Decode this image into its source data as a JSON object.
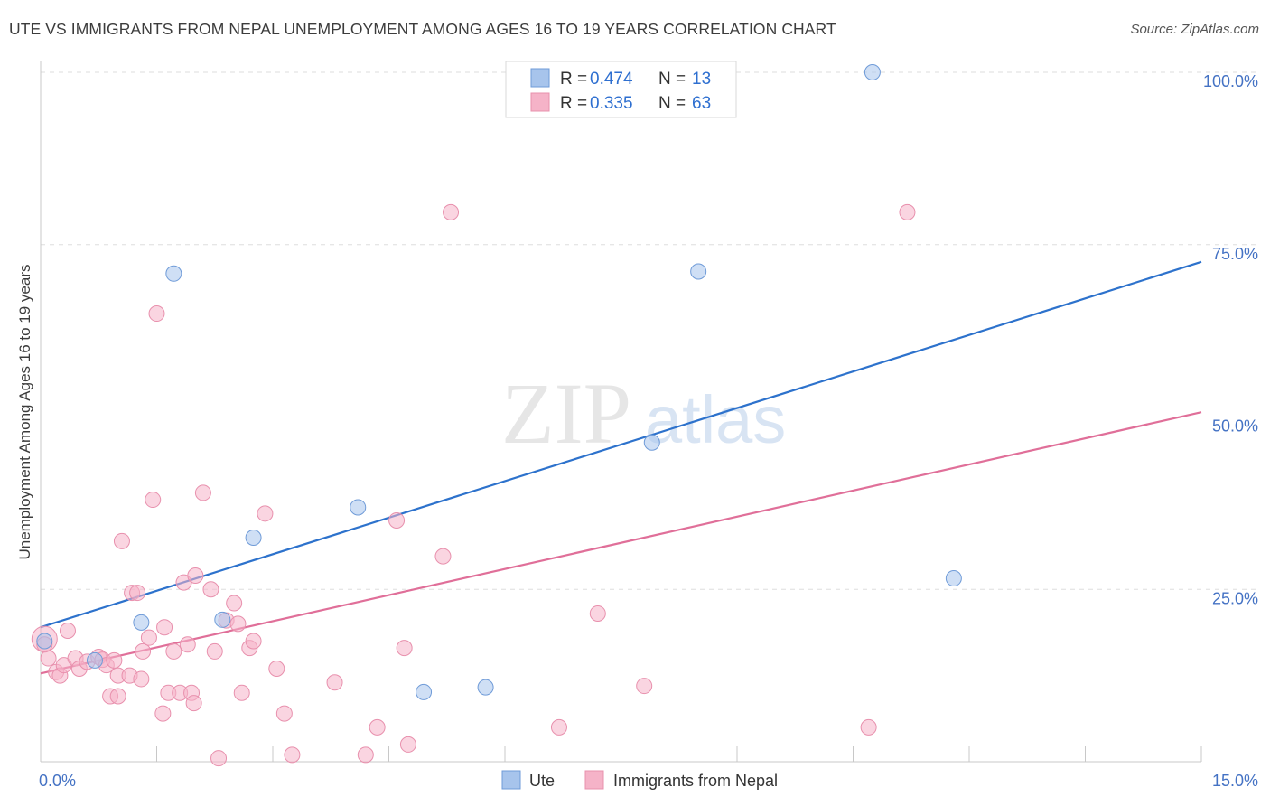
{
  "header": {
    "title": "UTE VS IMMIGRANTS FROM NEPAL UNEMPLOYMENT AMONG AGES 16 TO 19 YEARS CORRELATION CHART",
    "source": "Source: ZipAtlas.com"
  },
  "watermark": {
    "zip": "ZIP",
    "atlas": "atlas"
  },
  "chart_data": {
    "type": "scatter",
    "ylabel": "Unemployment Among Ages 16 to 19 years",
    "xlim": [
      0,
      15
    ],
    "ylim": [
      0,
      102
    ],
    "x_tick_labels": [
      "0.0%",
      "15.0%"
    ],
    "y_ticks": [
      {
        "value": 25,
        "label": "25.0%"
      },
      {
        "value": 50,
        "label": "50.0%"
      },
      {
        "value": 75,
        "label": "75.0%"
      },
      {
        "value": 100,
        "label": "100.0%"
      }
    ],
    "grid": true,
    "legend_top": [
      {
        "r_label": "R = ",
        "r_value": "0.474",
        "n_label": "N = ",
        "n_value": "13",
        "color": "#a7c4ec"
      },
      {
        "r_label": "R = ",
        "r_value": "0.335",
        "n_label": "N = ",
        "n_value": "63",
        "color": "#f5b3c8"
      }
    ],
    "legend_bottom": [
      "Ute",
      "Immigrants from Nepal"
    ],
    "series": [
      {
        "name": "Ute",
        "color": "#a7c4ec",
        "stroke": "#6f9bd8",
        "line_color": "#2d72cc",
        "trend": [
          [
            0,
            19.5
          ],
          [
            15,
            72.5
          ]
        ],
        "points": [
          [
            0.05,
            17.5
          ],
          [
            0.7,
            14.7
          ],
          [
            1.3,
            20.2
          ],
          [
            1.72,
            70.8
          ],
          [
            2.35,
            20.6
          ],
          [
            2.75,
            32.5
          ],
          [
            4.1,
            36.9
          ],
          [
            4.95,
            10.1
          ],
          [
            5.75,
            10.8
          ],
          [
            7.9,
            46.3
          ],
          [
            8.5,
            71.1
          ],
          [
            10.75,
            100.0
          ],
          [
            11.8,
            26.6
          ]
        ]
      },
      {
        "name": "Immigrants from Nepal",
        "color": "#f5b3c8",
        "stroke": "#e890ad",
        "line_color": "#e06f99",
        "trend": [
          [
            0,
            12.8
          ],
          [
            15,
            50.7
          ]
        ],
        "points": [
          [
            0.05,
            17.8
          ],
          [
            0.1,
            15.0
          ],
          [
            0.2,
            13.0
          ],
          [
            0.25,
            12.5
          ],
          [
            0.3,
            14.0
          ],
          [
            0.35,
            19.0
          ],
          [
            0.45,
            15.0
          ],
          [
            0.5,
            13.5
          ],
          [
            0.6,
            14.5
          ],
          [
            0.75,
            15.2
          ],
          [
            0.8,
            14.8
          ],
          [
            0.85,
            14.0
          ],
          [
            0.9,
            9.5
          ],
          [
            0.95,
            14.7
          ],
          [
            1.0,
            12.5
          ],
          [
            1.0,
            9.5
          ],
          [
            1.05,
            32.0
          ],
          [
            1.15,
            12.5
          ],
          [
            1.18,
            24.5
          ],
          [
            1.25,
            24.5
          ],
          [
            1.3,
            12.0
          ],
          [
            1.32,
            16.0
          ],
          [
            1.4,
            18.0
          ],
          [
            1.45,
            38.0
          ],
          [
            1.5,
            65.0
          ],
          [
            1.58,
            7.0
          ],
          [
            1.6,
            19.5
          ],
          [
            1.65,
            10.0
          ],
          [
            1.72,
            16.0
          ],
          [
            1.8,
            10.0
          ],
          [
            1.85,
            26.0
          ],
          [
            1.9,
            17.0
          ],
          [
            1.95,
            10.0
          ],
          [
            1.98,
            8.5
          ],
          [
            2.0,
            27.0
          ],
          [
            2.1,
            39.0
          ],
          [
            2.2,
            25.0
          ],
          [
            2.25,
            16.0
          ],
          [
            2.3,
            0.5
          ],
          [
            2.4,
            20.5
          ],
          [
            2.5,
            23.0
          ],
          [
            2.55,
            20.0
          ],
          [
            2.6,
            10.0
          ],
          [
            2.7,
            16.5
          ],
          [
            2.75,
            17.5
          ],
          [
            2.9,
            36.0
          ],
          [
            3.05,
            13.5
          ],
          [
            3.15,
            7.0
          ],
          [
            3.25,
            1.0
          ],
          [
            3.8,
            11.5
          ],
          [
            4.2,
            1.0
          ],
          [
            4.35,
            5.0
          ],
          [
            4.6,
            35.0
          ],
          [
            4.7,
            16.5
          ],
          [
            4.75,
            2.5
          ],
          [
            5.2,
            29.8
          ],
          [
            5.3,
            79.7
          ],
          [
            6.7,
            5.0
          ],
          [
            7.2,
            21.5
          ],
          [
            7.8,
            11.0
          ],
          [
            10.7,
            5.0
          ],
          [
            11.2,
            79.7
          ],
          [
            0.05,
            17.0
          ]
        ]
      }
    ]
  }
}
